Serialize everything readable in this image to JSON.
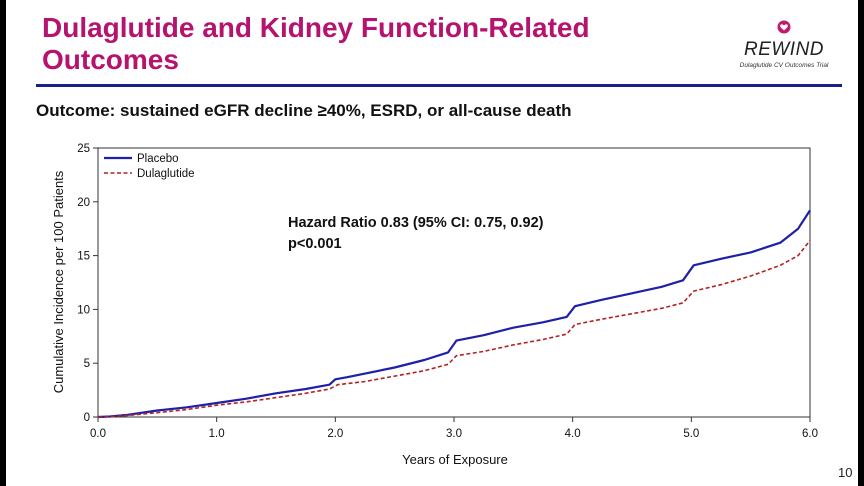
{
  "slide": {
    "title_line1": "Dulaglutide and Kidney Function-Related",
    "title_line2": "Outcomes",
    "subtitle": "Outcome: sustained eGFR decline ≥40%, ESRD, or all-cause death",
    "page_number": "10",
    "logo": {
      "name": "REWIND",
      "tagline": "Dulaglutide CV Outcomes Trial",
      "icon": "heart-icon"
    },
    "colors": {
      "title": "#b5136e",
      "rule": "#1a1f8c",
      "placebo": "#1f1fa8",
      "dulaglutide": "#b22222"
    }
  },
  "chart_data": {
    "type": "line",
    "xlabel": "Years of Exposure",
    "ylabel": "Cumulative Incidence per 100 Patients",
    "xlim": [
      0,
      6
    ],
    "ylim": [
      0,
      25
    ],
    "xticks": [
      "0.0",
      "1.0",
      "2.0",
      "3.0",
      "4.0",
      "5.0",
      "6.0"
    ],
    "yticks": [
      "0",
      "5",
      "10",
      "15",
      "20",
      "25"
    ],
    "legend_position": "top-left",
    "grid": false,
    "annotation_line1": "Hazard Ratio 0.83 (95% CI: 0.75, 0.92)",
    "annotation_line2": "p<0.001",
    "series": [
      {
        "name": "Placebo",
        "style": "solid",
        "points": [
          [
            0,
            0
          ],
          [
            0.1,
            0.05
          ],
          [
            0.25,
            0.2
          ],
          [
            0.5,
            0.6
          ],
          [
            0.75,
            0.9
          ],
          [
            1.0,
            1.3
          ],
          [
            1.25,
            1.7
          ],
          [
            1.5,
            2.2
          ],
          [
            1.75,
            2.6
          ],
          [
            1.95,
            3.0
          ],
          [
            2.0,
            3.5
          ],
          [
            2.1,
            3.7
          ],
          [
            2.5,
            4.6
          ],
          [
            2.75,
            5.3
          ],
          [
            2.95,
            6.0
          ],
          [
            3.02,
            7.1
          ],
          [
            3.25,
            7.6
          ],
          [
            3.5,
            8.3
          ],
          [
            3.75,
            8.8
          ],
          [
            3.95,
            9.3
          ],
          [
            4.02,
            10.3
          ],
          [
            4.25,
            10.9
          ],
          [
            4.5,
            11.5
          ],
          [
            4.75,
            12.1
          ],
          [
            4.93,
            12.7
          ],
          [
            5.02,
            14.1
          ],
          [
            5.25,
            14.7
          ],
          [
            5.5,
            15.3
          ],
          [
            5.75,
            16.2
          ],
          [
            5.9,
            17.5
          ],
          [
            6.0,
            19.2
          ]
        ]
      },
      {
        "name": "Dulaglutide",
        "style": "dashed",
        "points": [
          [
            0,
            0
          ],
          [
            0.1,
            0.03
          ],
          [
            0.25,
            0.15
          ],
          [
            0.5,
            0.4
          ],
          [
            0.75,
            0.7
          ],
          [
            1.0,
            1.1
          ],
          [
            1.25,
            1.4
          ],
          [
            1.5,
            1.8
          ],
          [
            1.75,
            2.2
          ],
          [
            1.95,
            2.6
          ],
          [
            2.02,
            3.0
          ],
          [
            2.25,
            3.3
          ],
          [
            2.5,
            3.8
          ],
          [
            2.75,
            4.3
          ],
          [
            2.95,
            4.9
          ],
          [
            3.02,
            5.7
          ],
          [
            3.25,
            6.1
          ],
          [
            3.5,
            6.7
          ],
          [
            3.75,
            7.2
          ],
          [
            3.95,
            7.7
          ],
          [
            4.02,
            8.6
          ],
          [
            4.25,
            9.1
          ],
          [
            4.5,
            9.6
          ],
          [
            4.75,
            10.1
          ],
          [
            4.93,
            10.6
          ],
          [
            5.02,
            11.7
          ],
          [
            5.25,
            12.3
          ],
          [
            5.5,
            13.1
          ],
          [
            5.75,
            14.1
          ],
          [
            5.9,
            15.0
          ],
          [
            6.0,
            16.4
          ]
        ]
      }
    ]
  }
}
